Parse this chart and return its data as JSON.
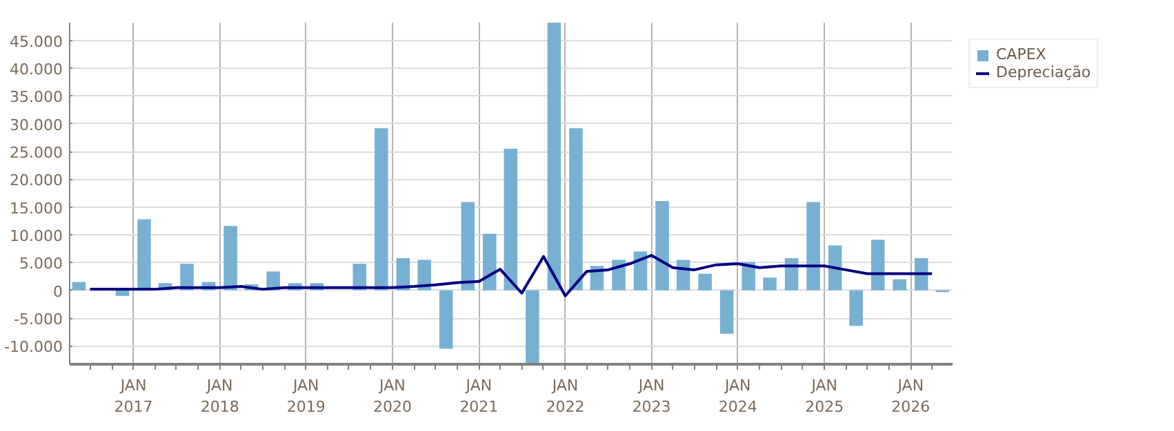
{
  "chart_data": {
    "type": "bar",
    "x": [
      "2016-05-15",
      "2016-08-15",
      "2016-11-15",
      "2017-02-15",
      "2017-05-15",
      "2017-08-15",
      "2017-11-15",
      "2018-02-15",
      "2018-05-15",
      "2018-08-15",
      "2018-11-15",
      "2019-02-15",
      "2019-05-15",
      "2019-08-15",
      "2019-11-15",
      "2020-02-15",
      "2020-05-15",
      "2020-08-15",
      "2020-11-15",
      "2021-02-15",
      "2021-05-15",
      "2021-08-15",
      "2021-11-15",
      "2022-02-15",
      "2022-05-15",
      "2022-08-15",
      "2022-11-15",
      "2023-02-15",
      "2023-05-15",
      "2023-08-15",
      "2023-11-15",
      "2024-02-15",
      "2024-05-15",
      "2024-08-15",
      "2024-11-15",
      "2025-02-15",
      "2025-05-15",
      "2025-08-15",
      "2025-11-15",
      "2026-02-15",
      "2026-05-15"
    ],
    "series": [
      {
        "name": "CAPEX",
        "color": "#77b0d3",
        "values": [
          1500,
          null,
          -1000,
          12800,
          1300,
          4800,
          1500,
          11600,
          1100,
          3400,
          1300,
          1300,
          null,
          4800,
          29200,
          5800,
          5500,
          -10500,
          15900,
          10200,
          25500,
          -13300,
          48200,
          29200,
          4400,
          5500,
          7000,
          16100,
          5500,
          3000,
          -7800,
          5100,
          2300,
          5800,
          15900,
          8100,
          -6400,
          9100,
          2000,
          5800,
          -300
        ]
      },
      {
        "name": "Depreciação",
        "type": "line",
        "color": "#000080",
        "x": [
          "2016-07",
          "2016-10",
          "2017-01",
          "2017-04",
          "2017-07",
          "2017-10",
          "2018-01",
          "2018-04",
          "2018-07",
          "2018-10",
          "2019-01",
          "2019-04",
          "2019-07",
          "2019-10",
          "2020-01",
          "2020-04",
          "2020-07",
          "2020-10",
          "2021-01",
          "2021-04",
          "2021-07",
          "2021-10",
          "2022-01",
          "2022-04",
          "2022-07",
          "2022-10",
          "2023-01",
          "2023-04",
          "2023-07",
          "2023-10",
          "2024-01",
          "2024-04",
          "2024-07",
          "2024-10",
          "2025-01",
          "2025-04",
          "2025-07",
          "2025-10",
          "2026-01",
          "2026-04"
        ],
        "values": [
          200,
          200,
          200,
          200,
          500,
          500,
          500,
          700,
          200,
          500,
          500,
          500,
          500,
          500,
          500,
          700,
          1000,
          1400,
          1600,
          3800,
          -500,
          6100,
          -1000,
          3400,
          3700,
          4800,
          6300,
          4100,
          3700,
          4600,
          4800,
          4100,
          4400,
          4400,
          4400,
          3700,
          3000,
          3000,
          3000,
          3000
        ]
      }
    ],
    "xlim": [
      "2016-04-06",
      "2026-06-27"
    ],
    "xticks": [
      {
        "value": "2016-07",
        "label": null
      },
      {
        "value": "2016-10",
        "label": null
      },
      {
        "value": "2017-01",
        "label": "JAN\n2017"
      },
      {
        "value": "2017-04",
        "label": null
      },
      {
        "value": "2017-07",
        "label": null
      },
      {
        "value": "2017-10",
        "label": null
      },
      {
        "value": "2018-01",
        "label": "JAN\n2018"
      },
      {
        "value": "2018-04",
        "label": null
      },
      {
        "value": "2018-07",
        "label": null
      },
      {
        "value": "2018-10",
        "label": null
      },
      {
        "value": "2019-01",
        "label": "JAN\n2019"
      },
      {
        "value": "2019-04",
        "label": null
      },
      {
        "value": "2019-07",
        "label": null
      },
      {
        "value": "2019-10",
        "label": null
      },
      {
        "value": "2020-01",
        "label": "JAN\n2020"
      },
      {
        "value": "2020-04",
        "label": null
      },
      {
        "value": "2020-07",
        "label": null
      },
      {
        "value": "2020-10",
        "label": null
      },
      {
        "value": "2021-01",
        "label": "JAN\n2021"
      },
      {
        "value": "2021-04",
        "label": null
      },
      {
        "value": "2021-07",
        "label": null
      },
      {
        "value": "2021-10",
        "label": null
      },
      {
        "value": "2022-01",
        "label": "JAN\n2022"
      },
      {
        "value": "2022-04",
        "label": null
      },
      {
        "value": "2022-07",
        "label": null
      },
      {
        "value": "2022-10",
        "label": null
      },
      {
        "value": "2023-01",
        "label": "JAN\n2023"
      },
      {
        "value": "2023-04",
        "label": null
      },
      {
        "value": "2023-07",
        "label": null
      },
      {
        "value": "2023-10",
        "label": null
      },
      {
        "value": "2024-01",
        "label": "JAN\n2024"
      },
      {
        "value": "2024-04",
        "label": null
      },
      {
        "value": "2024-07",
        "label": null
      },
      {
        "value": "2024-10",
        "label": null
      },
      {
        "value": "2025-01",
        "label": "JAN\n2025"
      },
      {
        "value": "2025-04",
        "label": null
      },
      {
        "value": "2025-07",
        "label": null
      },
      {
        "value": "2025-10",
        "label": null
      },
      {
        "value": "2026-01",
        "label": "JAN\n2026"
      },
      {
        "value": "2026-04",
        "label": null
      }
    ],
    "ylim": [
      -13300,
      48200
    ],
    "yticks": [
      {
        "value": -10000,
        "label": "-10.000"
      },
      {
        "value": -5000,
        "label": "-5.000"
      },
      0,
      {
        "value": 5000,
        "label": "5.000"
      },
      {
        "value": 10000,
        "label": "10.000"
      },
      {
        "value": 15000,
        "label": "15.000"
      },
      {
        "value": 20000,
        "label": "20.000"
      },
      {
        "value": 25000,
        "label": "25.000"
      },
      {
        "value": 30000,
        "label": "30.000"
      },
      {
        "value": 35000,
        "label": "35.000"
      },
      {
        "value": 40000,
        "label": "40.000"
      },
      {
        "value": 45000,
        "label": "45.000"
      }
    ],
    "grid": true,
    "legend": "top right"
  }
}
